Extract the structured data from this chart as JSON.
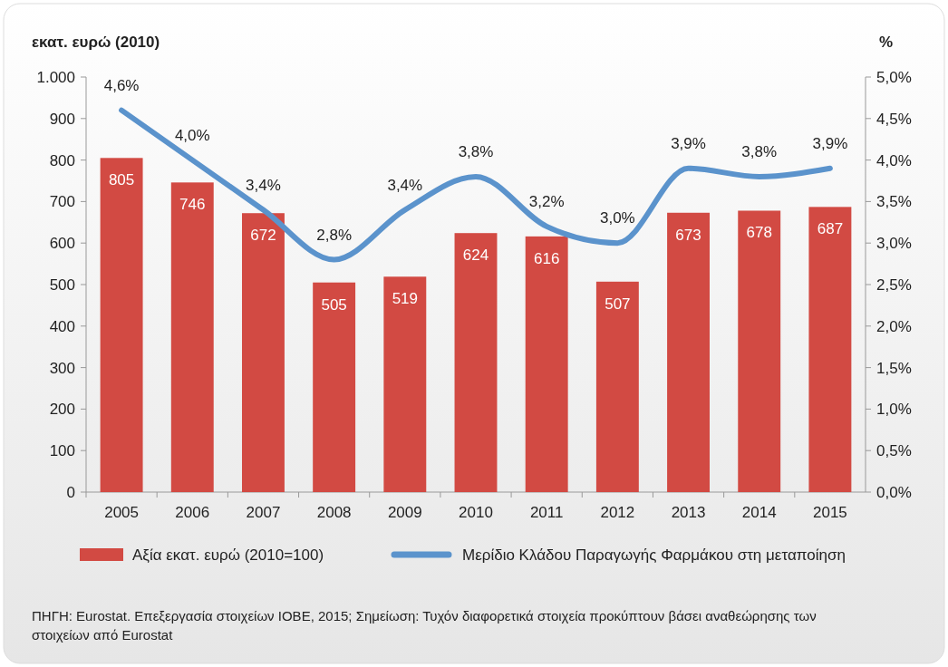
{
  "chart_data": {
    "type": "bar",
    "ylabel": "εκατ. ευρώ (2010)",
    "y2label": "%",
    "categories": [
      "2005",
      "2006",
      "2007",
      "2008",
      "2009",
      "2010",
      "2011",
      "2012",
      "2013",
      "2014",
      "2015"
    ],
    "series": [
      {
        "name": "Αξία εκατ. ευρώ (2010=100)",
        "color": "#d24a43",
        "values": [
          805,
          746,
          672,
          505,
          519,
          624,
          616,
          507,
          673,
          678,
          687
        ]
      },
      {
        "name": "Μερίδιο Κλάδου Παραγωγής Φαρμάκου στη μεταποίηση",
        "type": "line",
        "axis": "y2",
        "color": "#5b93cc",
        "values": [
          4.6,
          4.0,
          3.4,
          2.8,
          3.4,
          3.8,
          3.2,
          3.0,
          3.9,
          3.8,
          3.9
        ],
        "value_labels": [
          "4,6%",
          "4,0%",
          "3,4%",
          "2,8%",
          "3,4%",
          "3,8%",
          "3,2%",
          "3,0%",
          "3,9%",
          "3,8%",
          "3,9%"
        ]
      }
    ],
    "data_labels": true,
    "ylim": [
      0,
      1000
    ],
    "yticks": [
      0,
      100,
      200,
      300,
      400,
      500,
      600,
      700,
      800,
      900,
      {
        "value": 1000,
        "label": "1.000"
      }
    ],
    "y2lim": [
      0,
      5
    ],
    "y2ticks": [
      {
        "value": 0,
        "label": "0,0%"
      },
      {
        "value": 0.5,
        "label": "0,5%"
      },
      {
        "value": 1,
        "label": "1,0%"
      },
      {
        "value": 1.5,
        "label": "1,5%"
      },
      {
        "value": 2,
        "label": "2,0%"
      },
      {
        "value": 2.5,
        "label": "2,5%"
      },
      {
        "value": 3,
        "label": "3,0%"
      },
      {
        "value": 3.5,
        "label": "3,5%"
      },
      {
        "value": 4,
        "label": "4,0%"
      },
      {
        "value": 4.5,
        "label": "4,5%"
      },
      {
        "value": 5,
        "label": "5,0%"
      }
    ],
    "legend": "bottom",
    "line_style": "solid",
    "annotations": [
      "ΠΗΓΗ: Eurostat. Επεξεργασία στοιχείων ΙΟΒΕ, 2015; Σημείωση: Τυχόν διαφορετικά στοιχεία προκύπτουν βάσει αναθεώρησης των στοιχείων από Eurostat"
    ]
  }
}
